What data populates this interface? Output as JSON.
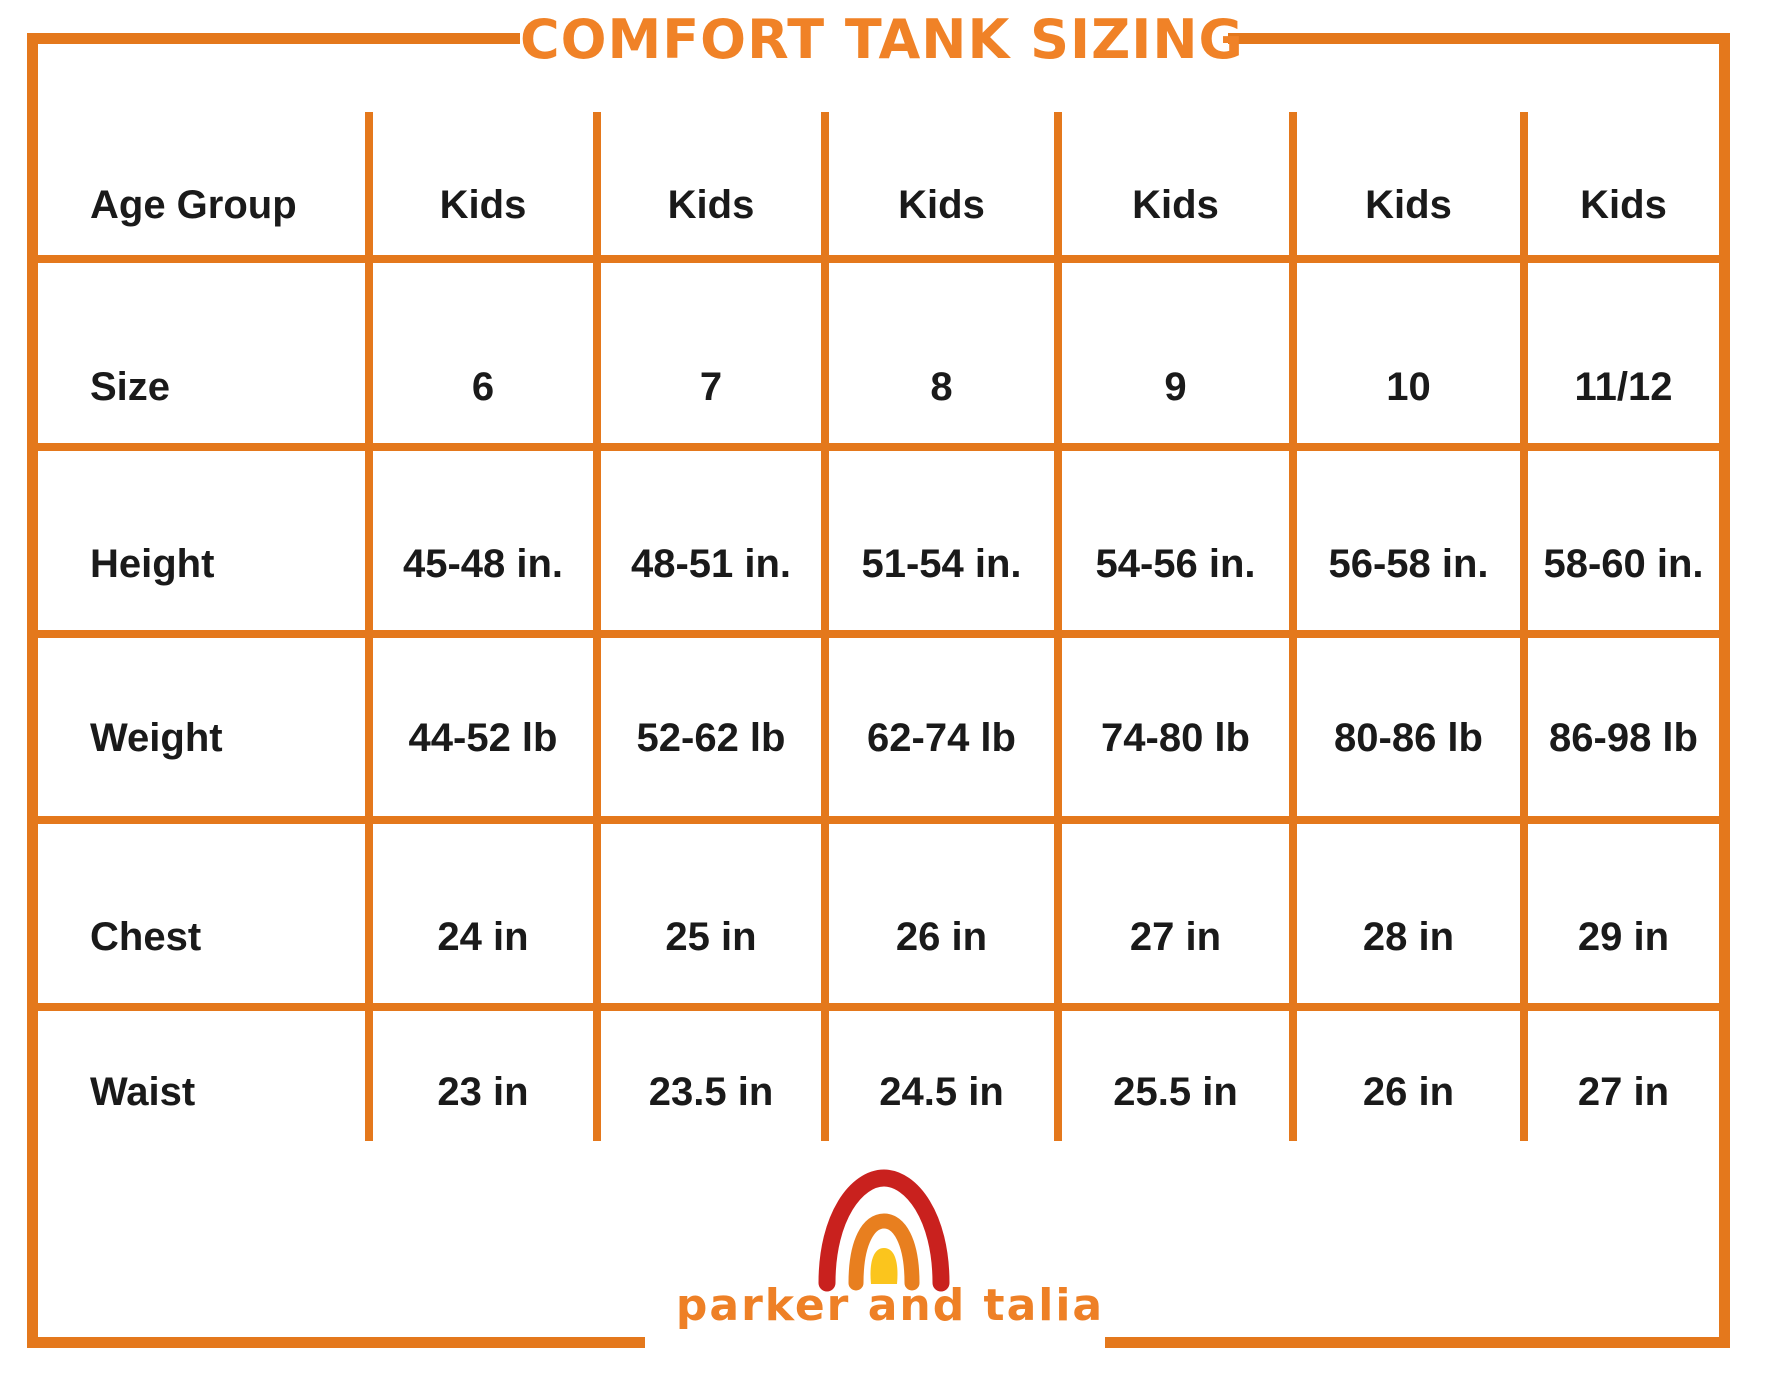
{
  "title": "COMFORT TANK SIZING",
  "brand": {
    "name": "parker and talia"
  },
  "colors": {
    "orange": "#E4781C",
    "title_orange": "#F08227",
    "brand_orange": "#EE8026",
    "text": "#1A1A1A",
    "logo_red": "#C9211E",
    "logo_orange": "#E87F1F",
    "logo_yellow": "#FBC51D"
  },
  "chart_data": {
    "type": "table",
    "title": "COMFORT TANK SIZING",
    "columns": [
      "Age Group",
      "Kids",
      "Kids",
      "Kids",
      "Kids",
      "Kids",
      "Kids"
    ],
    "rows": [
      {
        "label": "Size",
        "values": [
          "6",
          "7",
          "8",
          "9",
          "10",
          "11/12"
        ]
      },
      {
        "label": "Height",
        "values": [
          "45-48 in.",
          "48-51 in.",
          "51-54 in.",
          "54-56 in.",
          "56-58 in.",
          "58-60 in."
        ]
      },
      {
        "label": "Weight",
        "values": [
          "44-52 lb",
          "52-62 lb",
          "62-74 lb",
          "74-80 lb",
          "80-86 lb",
          "86-98 lb"
        ]
      },
      {
        "label": "Chest",
        "values": [
          "24 in",
          "25 in",
          "26 in",
          "27 in",
          "28 in",
          "29 in"
        ]
      },
      {
        "label": "Waist",
        "values": [
          "23 in",
          "23.5 in",
          "24.5 in",
          "25.5 in",
          "26 in",
          "27 in"
        ]
      }
    ],
    "layout_hints": {
      "grid": "orange ruled table",
      "header_row": "Kids age-group header",
      "legend": "none"
    }
  }
}
